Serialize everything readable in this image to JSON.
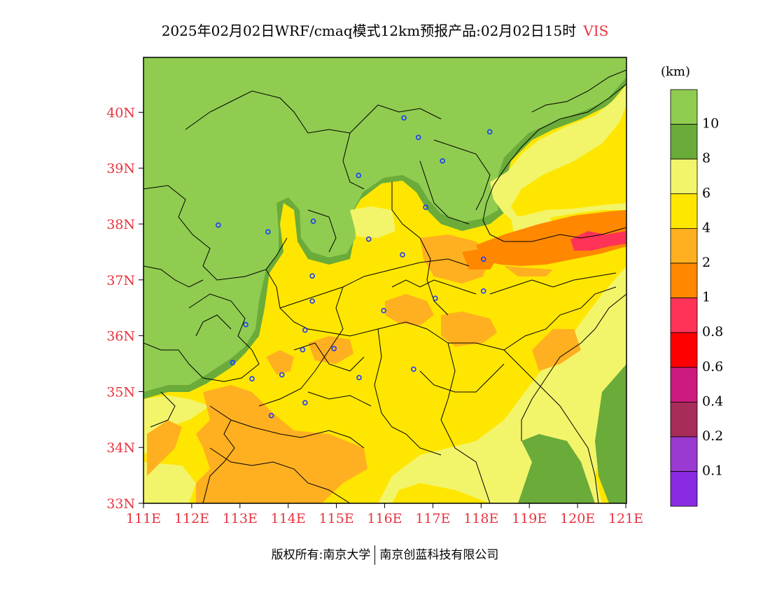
{
  "title": {
    "text": "2025年02月02日WRF/cmaq模式12km预报产品:02月02日15时",
    "variable": "VIS"
  },
  "footer": {
    "left": "版权所有:南京大学",
    "right": "南京创蓝科技有限公司"
  },
  "map": {
    "lat_ticks": [
      "33N",
      "34N",
      "35N",
      "36N",
      "37N",
      "38N",
      "39N",
      "40N"
    ],
    "lon_ticks": [
      "111E",
      "112E",
      "113E",
      "114E",
      "115E",
      "116E",
      "117E",
      "118E",
      "119E",
      "120E",
      "121E"
    ],
    "axis_color": "#e8333f"
  },
  "legend": {
    "unit": "(km)",
    "labels": [
      "10",
      "8",
      "6",
      "4",
      "2",
      "1",
      "0.8",
      "0.6",
      "0.4",
      "0.2",
      "0.1"
    ],
    "colors": [
      "#90cc50",
      "#6aab3a",
      "#f2f56a",
      "#ffe600",
      "#ffb020",
      "#ff8800",
      "#ff3358",
      "#ff0000",
      "#cc1a7f",
      "#a82c5a",
      "#9a3ad0",
      "#8a2be2"
    ]
  },
  "stations": [
    {
      "lon": 116.4,
      "lat": 39.9
    },
    {
      "lon": 116.7,
      "lat": 39.55
    },
    {
      "lon": 117.2,
      "lat": 39.13
    },
    {
      "lon": 118.18,
      "lat": 39.65
    },
    {
      "lon": 115.46,
      "lat": 38.87
    },
    {
      "lon": 116.85,
      "lat": 38.3
    },
    {
      "lon": 114.52,
      "lat": 38.05
    },
    {
      "lon": 112.55,
      "lat": 37.98
    },
    {
      "lon": 113.58,
      "lat": 37.86
    },
    {
      "lon": 115.67,
      "lat": 37.73
    },
    {
      "lon": 116.37,
      "lat": 37.45
    },
    {
      "lon": 118.05,
      "lat": 37.37
    },
    {
      "lon": 114.5,
      "lat": 37.07
    },
    {
      "lon": 118.05,
      "lat": 36.8
    },
    {
      "lon": 117.05,
      "lat": 36.67
    },
    {
      "lon": 114.5,
      "lat": 36.62
    },
    {
      "lon": 115.98,
      "lat": 36.45
    },
    {
      "lon": 113.12,
      "lat": 36.2
    },
    {
      "lon": 114.35,
      "lat": 36.1
    },
    {
      "lon": 114.3,
      "lat": 35.75
    },
    {
      "lon": 114.95,
      "lat": 35.77
    },
    {
      "lon": 116.6,
      "lat": 35.4
    },
    {
      "lon": 113.87,
      "lat": 35.3
    },
    {
      "lon": 115.47,
      "lat": 35.25
    },
    {
      "lon": 113.25,
      "lat": 35.23
    },
    {
      "lon": 112.85,
      "lat": 35.52
    },
    {
      "lon": 114.35,
      "lat": 34.8
    },
    {
      "lon": 113.65,
      "lat": 34.57
    }
  ]
}
